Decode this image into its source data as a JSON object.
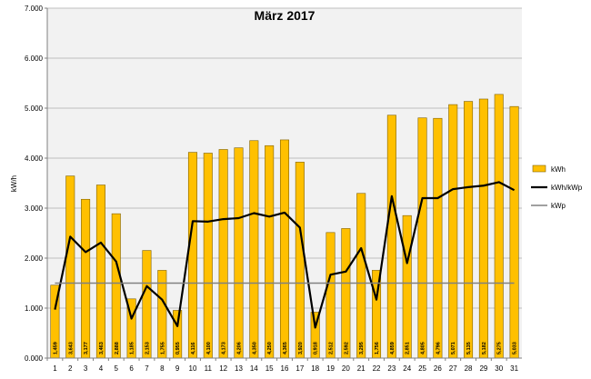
{
  "chart_data": {
    "type": "bar",
    "title": "März 2017",
    "xlabel": "",
    "ylabel": "kW/h",
    "ylim": [
      0,
      7
    ],
    "yticks": [
      "0.000",
      "1.000",
      "2.000",
      "3.000",
      "4.000",
      "5.000",
      "6.000",
      "7.000"
    ],
    "grid": true,
    "legend_position": "right",
    "categories": [
      "1",
      "2",
      "3",
      "4",
      "5",
      "6",
      "7",
      "8",
      "9",
      "10",
      "11",
      "12",
      "13",
      "14",
      "15",
      "16",
      "17",
      "18",
      "19",
      "20",
      "21",
      "22",
      "23",
      "24",
      "25",
      "26",
      "27",
      "28",
      "29",
      "30",
      "31"
    ],
    "series": [
      {
        "name": "kWh",
        "kind": "bar",
        "color": "#ffc000",
        "values": [
          1.459,
          3.643,
          3.177,
          3.463,
          2.888,
          1.185,
          2.153,
          1.755,
          0.955,
          4.116,
          4.1,
          4.173,
          4.206,
          4.35,
          4.25,
          4.365,
          3.92,
          0.918,
          2.512,
          2.592,
          3.295,
          1.756,
          4.859,
          2.851,
          4.805,
          4.796,
          5.071,
          5.135,
          5.182,
          5.275,
          5.033
        ],
        "labels": [
          "1,459",
          "3,643",
          "3,177",
          "3,463",
          "2,888",
          "1,185",
          "2,153",
          "1,755",
          "0,955",
          "4,116",
          "4,100",
          "4,173",
          "4,206",
          "4,350",
          "4,250",
          "4,365",
          "3,920",
          "0,918",
          "2,512",
          "2,592",
          "3,295",
          "1,756",
          "4,859",
          "2,851",
          "4,805",
          "4,796",
          "5,071",
          "5,135",
          "5,182",
          "5,275",
          "5,033"
        ]
      },
      {
        "name": "kWh/kWp",
        "kind": "line",
        "color": "#000000",
        "values": [
          0.97,
          2.43,
          2.12,
          2.31,
          1.93,
          0.79,
          1.44,
          1.17,
          0.64,
          2.74,
          2.73,
          2.78,
          2.8,
          2.9,
          2.83,
          2.91,
          2.61,
          0.61,
          1.67,
          1.73,
          2.2,
          1.17,
          3.24,
          1.9,
          3.2,
          3.2,
          3.38,
          3.42,
          3.45,
          3.52,
          3.36
        ]
      },
      {
        "name": "kWp",
        "kind": "line",
        "color": "#808080",
        "values": [
          1.5,
          1.5,
          1.5,
          1.5,
          1.5,
          1.5,
          1.5,
          1.5,
          1.5,
          1.5,
          1.5,
          1.5,
          1.5,
          1.5,
          1.5,
          1.5,
          1.5,
          1.5,
          1.5,
          1.5,
          1.5,
          1.5,
          1.5,
          1.5,
          1.5,
          1.5,
          1.5,
          1.5,
          1.5,
          1.5,
          1.5
        ]
      }
    ]
  }
}
